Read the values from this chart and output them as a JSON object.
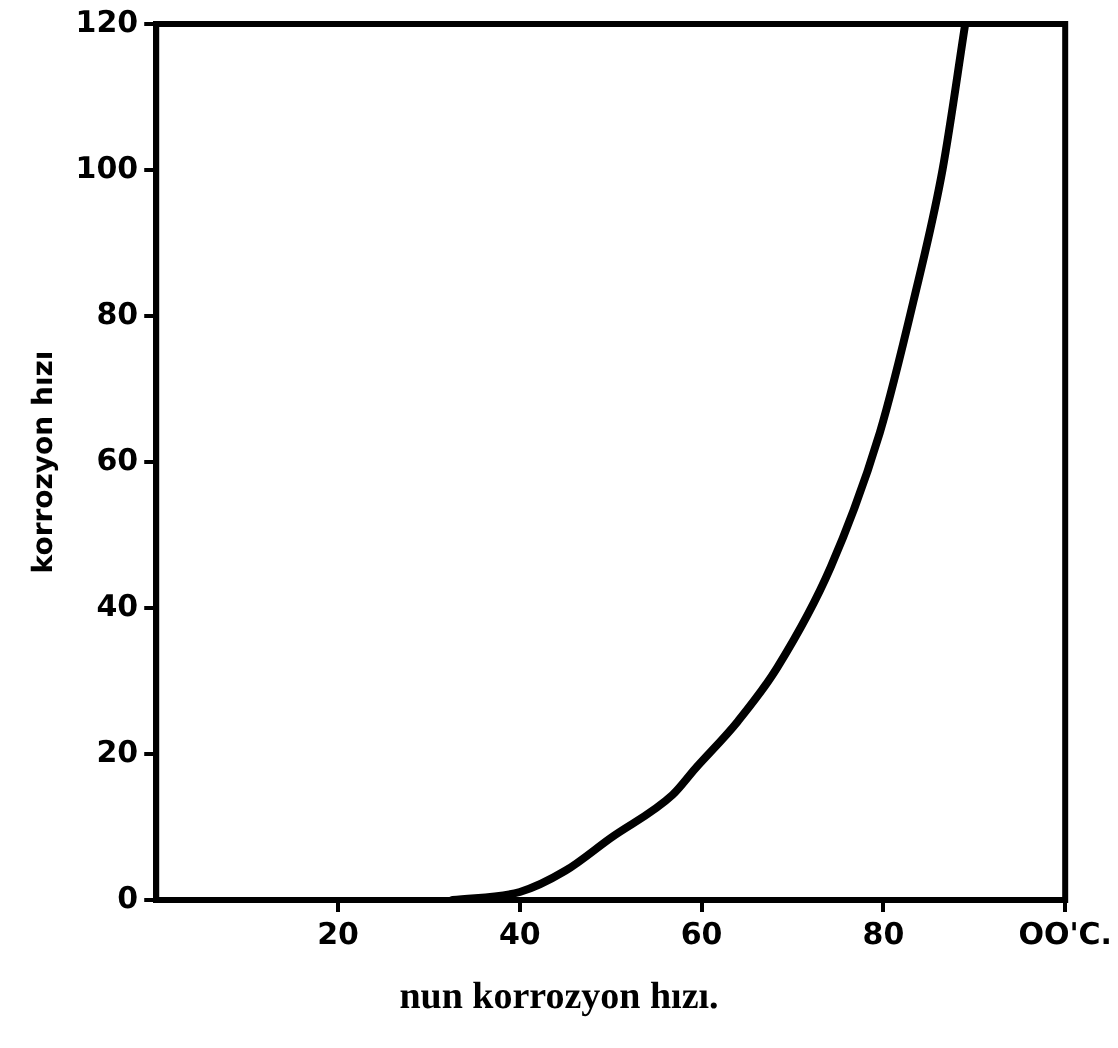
{
  "chart_data": {
    "type": "line",
    "xlabel": "nun korrozyon hızı.",
    "ylabel": "korrozyon hızı",
    "xlim": [
      0,
      100
    ],
    "ylim": [
      0,
      120
    ],
    "xticks": [
      20,
      40,
      60,
      80,
      {
        "value": 100,
        "label": "OO'C."
      }
    ],
    "yticks": [
      0,
      20,
      40,
      60,
      80,
      100,
      120
    ],
    "grid": false,
    "legend": false,
    "marker": "none",
    "line_style": "solid",
    "series": [
      {
        "color": "#000000",
        "x": [
          32.6,
          40,
          45,
          50,
          56.8,
          59.3,
          64,
          68.3,
          74.2,
          79.6,
          83.3,
          86.5,
          89
        ],
        "values": [
          0,
          1.1,
          4,
          8.5,
          14.4,
          18,
          24.5,
          31.8,
          45.6,
          64,
          82,
          100,
          120
        ]
      }
    ]
  }
}
